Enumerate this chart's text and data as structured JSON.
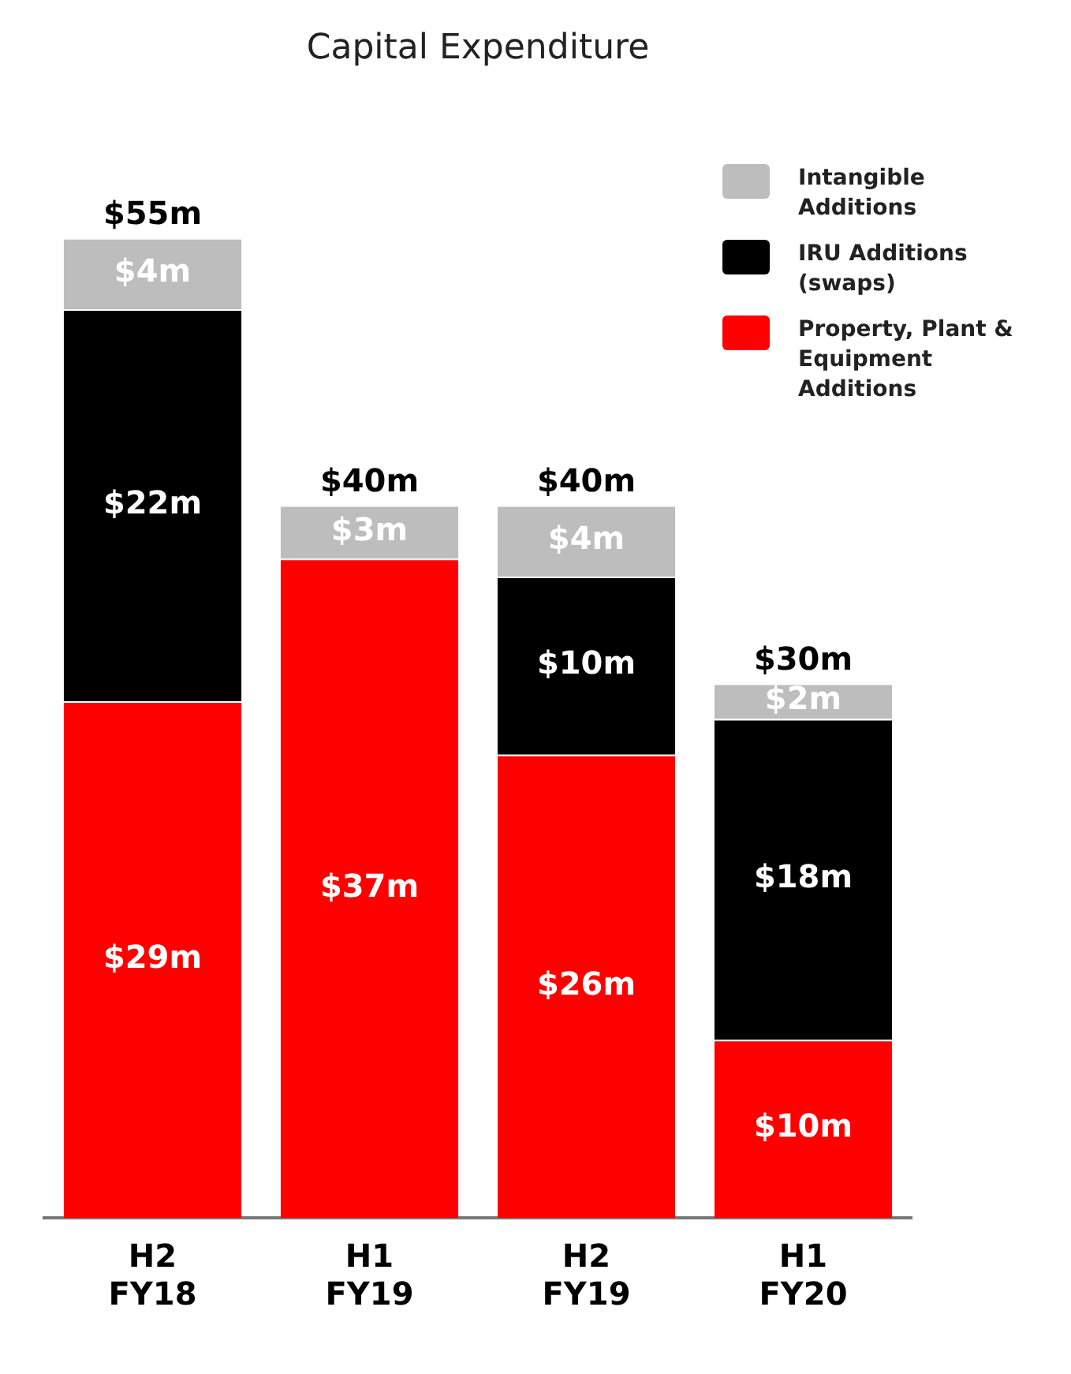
{
  "chart_data": {
    "type": "bar",
    "title": "Capital Expenditure",
    "stacked": true,
    "legend": "top right",
    "grid": false,
    "categories": [
      "H2 FY18",
      "H1 FY19",
      "H2 FY19",
      "H1 FY20"
    ],
    "series": [
      {
        "name": "Property, Plant & Equipment Additions",
        "color": "#ff0000",
        "values": [
          29,
          37,
          26,
          10
        ],
        "value_labels": [
          "$29m",
          "$37m",
          "$26m",
          "$10m"
        ]
      },
      {
        "name": "IRU Additions (swaps)",
        "color": "#000000",
        "values": [
          22,
          null,
          10,
          18
        ],
        "value_labels": [
          "$22m",
          null,
          "$10m",
          "$18m"
        ]
      },
      {
        "name": "Intangible Additions",
        "color": "#bdbdbd",
        "values": [
          4,
          3,
          4,
          2
        ],
        "value_labels": [
          "$4m",
          "$3m",
          "$4m",
          "$2m"
        ]
      }
    ],
    "totals": [
      "$55m",
      "$40m",
      "$40m",
      "$30m"
    ]
  }
}
